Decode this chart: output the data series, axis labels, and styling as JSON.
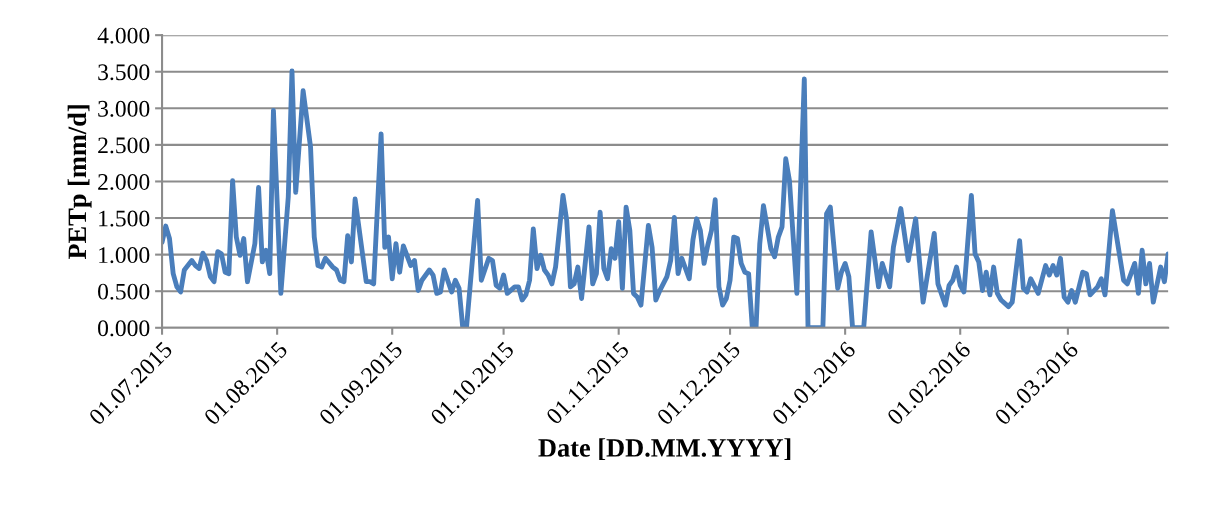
{
  "chart_data": {
    "type": "line",
    "xlabel": "Date [DD.MM.YYYY]",
    "ylabel": "PETp [mm/d]",
    "series": [
      {
        "color": "#4a7ebb",
        "x": [
          "2015-07-01",
          "2015-07-02",
          "2015-07-03",
          "2015-07-04",
          "2015-07-05",
          "2015-07-06",
          "2015-07-07",
          "2015-07-09",
          "2015-07-10",
          "2015-07-11",
          "2015-07-12",
          "2015-07-13",
          "2015-07-14",
          "2015-07-15",
          "2015-07-16",
          "2015-07-17",
          "2015-07-18",
          "2015-07-19",
          "2015-07-20",
          "2015-07-21",
          "2015-07-22",
          "2015-07-23",
          "2015-07-24",
          "2015-07-26",
          "2015-07-27",
          "2015-07-28",
          "2015-07-29",
          "2015-07-30",
          "2015-07-31",
          "2015-08-02",
          "2015-08-04",
          "2015-08-05",
          "2015-08-06",
          "2015-08-08",
          "2015-08-10",
          "2015-08-11",
          "2015-08-12",
          "2015-08-13",
          "2015-08-14",
          "2015-08-16",
          "2015-08-17",
          "2015-08-18",
          "2015-08-19",
          "2015-08-20",
          "2015-08-21",
          "2015-08-22",
          "2015-08-25",
          "2015-08-26",
          "2015-08-27",
          "2015-08-29",
          "2015-08-30",
          "2015-08-31",
          "2015-09-01",
          "2015-09-02",
          "2015-09-03",
          "2015-09-04",
          "2015-09-06",
          "2015-09-07",
          "2015-09-08",
          "2015-09-09",
          "2015-09-11",
          "2015-09-12",
          "2015-09-13",
          "2015-09-14",
          "2015-09-15",
          "2015-09-17",
          "2015-09-18",
          "2015-09-19",
          "2015-09-20",
          "2015-09-21",
          "2015-09-24",
          "2015-09-25",
          "2015-09-27",
          "2015-09-28",
          "2015-09-29",
          "2015-09-30",
          "2015-10-01",
          "2015-10-02",
          "2015-10-04",
          "2015-10-05",
          "2015-10-06",
          "2015-10-07",
          "2015-10-08",
          "2015-10-09",
          "2015-10-10",
          "2015-10-11",
          "2015-10-12",
          "2015-10-13",
          "2015-10-14",
          "2015-10-15",
          "2015-10-17",
          "2015-10-18",
          "2015-10-19",
          "2015-10-20",
          "2015-10-21",
          "2015-10-22",
          "2015-10-24",
          "2015-10-25",
          "2015-10-26",
          "2015-10-27",
          "2015-10-28",
          "2015-10-29",
          "2015-10-30",
          "2015-10-31",
          "2015-11-01",
          "2015-11-02",
          "2015-11-03",
          "2015-11-04",
          "2015-11-05",
          "2015-11-06",
          "2015-11-07",
          "2015-11-09",
          "2015-11-10",
          "2015-11-11",
          "2015-11-12",
          "2015-11-13",
          "2015-11-14",
          "2015-11-15",
          "2015-11-16",
          "2015-11-17",
          "2015-11-18",
          "2015-11-20",
          "2015-11-21",
          "2015-11-22",
          "2015-11-23",
          "2015-11-24",
          "2015-11-25",
          "2015-11-26",
          "2015-11-27",
          "2015-11-28",
          "2015-11-29",
          "2015-11-30",
          "2015-12-01",
          "2015-12-02",
          "2015-12-03",
          "2015-12-04",
          "2015-12-05",
          "2015-12-06",
          "2015-12-07",
          "2015-12-08",
          "2015-12-09",
          "2015-12-10",
          "2015-12-11",
          "2015-12-12",
          "2015-12-13",
          "2015-12-14",
          "2015-12-15",
          "2015-12-16",
          "2015-12-17",
          "2015-12-19",
          "2015-12-21",
          "2015-12-22",
          "2015-12-26",
          "2015-12-27",
          "2015-12-28",
          "2015-12-30",
          "2015-12-31",
          "2016-01-01",
          "2016-01-02",
          "2016-01-03",
          "2016-01-06",
          "2016-01-08",
          "2016-01-10",
          "2016-01-11",
          "2016-01-13",
          "2016-01-14",
          "2016-01-16",
          "2016-01-18",
          "2016-01-20",
          "2016-01-22",
          "2016-01-23",
          "2016-01-25",
          "2016-01-26",
          "2016-01-28",
          "2016-01-29",
          "2016-01-30",
          "2016-01-31",
          "2016-02-01",
          "2016-02-02",
          "2016-02-04",
          "2016-02-05",
          "2016-02-06",
          "2016-02-07",
          "2016-02-08",
          "2016-02-09",
          "2016-02-10",
          "2016-02-11",
          "2016-02-12",
          "2016-02-14",
          "2016-02-15",
          "2016-02-17",
          "2016-02-18",
          "2016-02-19",
          "2016-02-20",
          "2016-02-22",
          "2016-02-24",
          "2016-02-25",
          "2016-02-26",
          "2016-02-27",
          "2016-02-28",
          "2016-02-29",
          "2016-03-01",
          "2016-03-02",
          "2016-03-03",
          "2016-03-05",
          "2016-03-06",
          "2016-03-07",
          "2016-03-09",
          "2016-03-10",
          "2016-03-11",
          "2016-03-13",
          "2016-03-16",
          "2016-03-17",
          "2016-03-19",
          "2016-03-20",
          "2016-03-21",
          "2016-03-22",
          "2016-03-23",
          "2016-03-24",
          "2016-03-26",
          "2016-03-27",
          "2016-03-28"
        ],
        "values": [
          1.17,
          1.39,
          1.22,
          0.74,
          0.56,
          0.49,
          0.79,
          0.92,
          0.85,
          0.81,
          1.02,
          0.92,
          0.7,
          0.63,
          1.04,
          1.01,
          0.76,
          0.74,
          2.01,
          1.24,
          0.99,
          1.22,
          0.63,
          1.15,
          1.92,
          0.9,
          1.06,
          0.74,
          2.97,
          0.47,
          1.79,
          3.51,
          1.85,
          3.24,
          2.47,
          1.24,
          0.85,
          0.83,
          0.95,
          0.83,
          0.79,
          0.65,
          0.63,
          1.26,
          0.9,
          1.76,
          0.63,
          0.63,
          0.6,
          2.65,
          1.1,
          1.24,
          0.67,
          1.15,
          0.76,
          1.12,
          0.85,
          0.92,
          0.51,
          0.65,
          0.79,
          0.72,
          0.47,
          0.49,
          0.79,
          0.49,
          0.65,
          0.54,
          0,
          0,
          1.74,
          0.65,
          0.95,
          0.92,
          0.58,
          0.54,
          0.72,
          0.47,
          0.56,
          0.56,
          0.38,
          0.45,
          0.65,
          1.35,
          0.81,
          0.99,
          0.79,
          0.72,
          0.6,
          0.83,
          1.81,
          1.47,
          0.56,
          0.6,
          0.83,
          0.4,
          1.38,
          0.6,
          0.74,
          1.58,
          0.81,
          0.67,
          1.08,
          0.95,
          1.45,
          0.54,
          1.65,
          1.33,
          0.47,
          0.42,
          0.31,
          1.4,
          1.1,
          0.38,
          0.5,
          0.6,
          0.7,
          0.92,
          1.51,
          0.74,
          0.95,
          0.67,
          1.2,
          1.49,
          1.33,
          0.88,
          1.13,
          1.33,
          1.75,
          0.56,
          0.31,
          0.4,
          0.65,
          1.24,
          1.22,
          0.88,
          0.76,
          0.74,
          0,
          0,
          1.15,
          1.67,
          1.38,
          1.08,
          0.97,
          1.24,
          1.38,
          2.31,
          2.01,
          0.47,
          3.4,
          0,
          0,
          1.56,
          1.65,
          0.54,
          0.76,
          0.88,
          0.7,
          0,
          0,
          1.31,
          0.56,
          0.88,
          0.56,
          1.1,
          1.63,
          0.92,
          1.49,
          0.35,
          0.67,
          1.29,
          0.6,
          0.31,
          0.58,
          0.65,
          0.83,
          0.58,
          0.49,
          1.81,
          1.01,
          0.9,
          0.51,
          0.76,
          0.45,
          0.83,
          0.47,
          0.38,
          0.29,
          0.35,
          1.19,
          0.54,
          0.49,
          0.67,
          0.47,
          0.85,
          0.72,
          0.85,
          0.72,
          0.95,
          0.42,
          0.35,
          0.51,
          0.35,
          0.76,
          0.74,
          0.45,
          0.56,
          0.67,
          0.45,
          1.6,
          0.65,
          0.6,
          0.88,
          0.47,
          1.06,
          0.6,
          0.88,
          0.35,
          0.83,
          0.63,
          1.01
        ]
      }
    ],
    "xlim": [
      "2015-07-01",
      "2016-03-28"
    ],
    "xticks": [
      {
        "value": "2015-07-01",
        "label": "01.07.2015"
      },
      {
        "value": "2015-08-01",
        "label": "01.08.2015"
      },
      {
        "value": "2015-09-01",
        "label": "01.09.2015"
      },
      {
        "value": "2015-10-01",
        "label": "01.10.2015"
      },
      {
        "value": "2015-11-01",
        "label": "01.11.2015"
      },
      {
        "value": "2015-12-01",
        "label": "01.12.2015"
      },
      {
        "value": "2016-01-01",
        "label": "01.01.2016"
      },
      {
        "value": "2016-02-01",
        "label": "01.02.2016"
      },
      {
        "value": "2016-03-01",
        "label": "01.03.2016"
      }
    ],
    "ylim": [
      0,
      4
    ],
    "yticks": [
      {
        "value": 0,
        "label": "0.000"
      },
      {
        "value": 0.5,
        "label": "0.500"
      },
      {
        "value": 1,
        "label": "1.000"
      },
      {
        "value": 1.5,
        "label": "1.500"
      },
      {
        "value": 2,
        "label": "2.000"
      },
      {
        "value": 2.5,
        "label": "2.500"
      },
      {
        "value": 3,
        "label": "3.000"
      },
      {
        "value": 3.5,
        "label": "3.500"
      },
      {
        "value": 4,
        "label": "4.000"
      }
    ],
    "grid": "y",
    "marker": "none",
    "line_style": "solid"
  }
}
